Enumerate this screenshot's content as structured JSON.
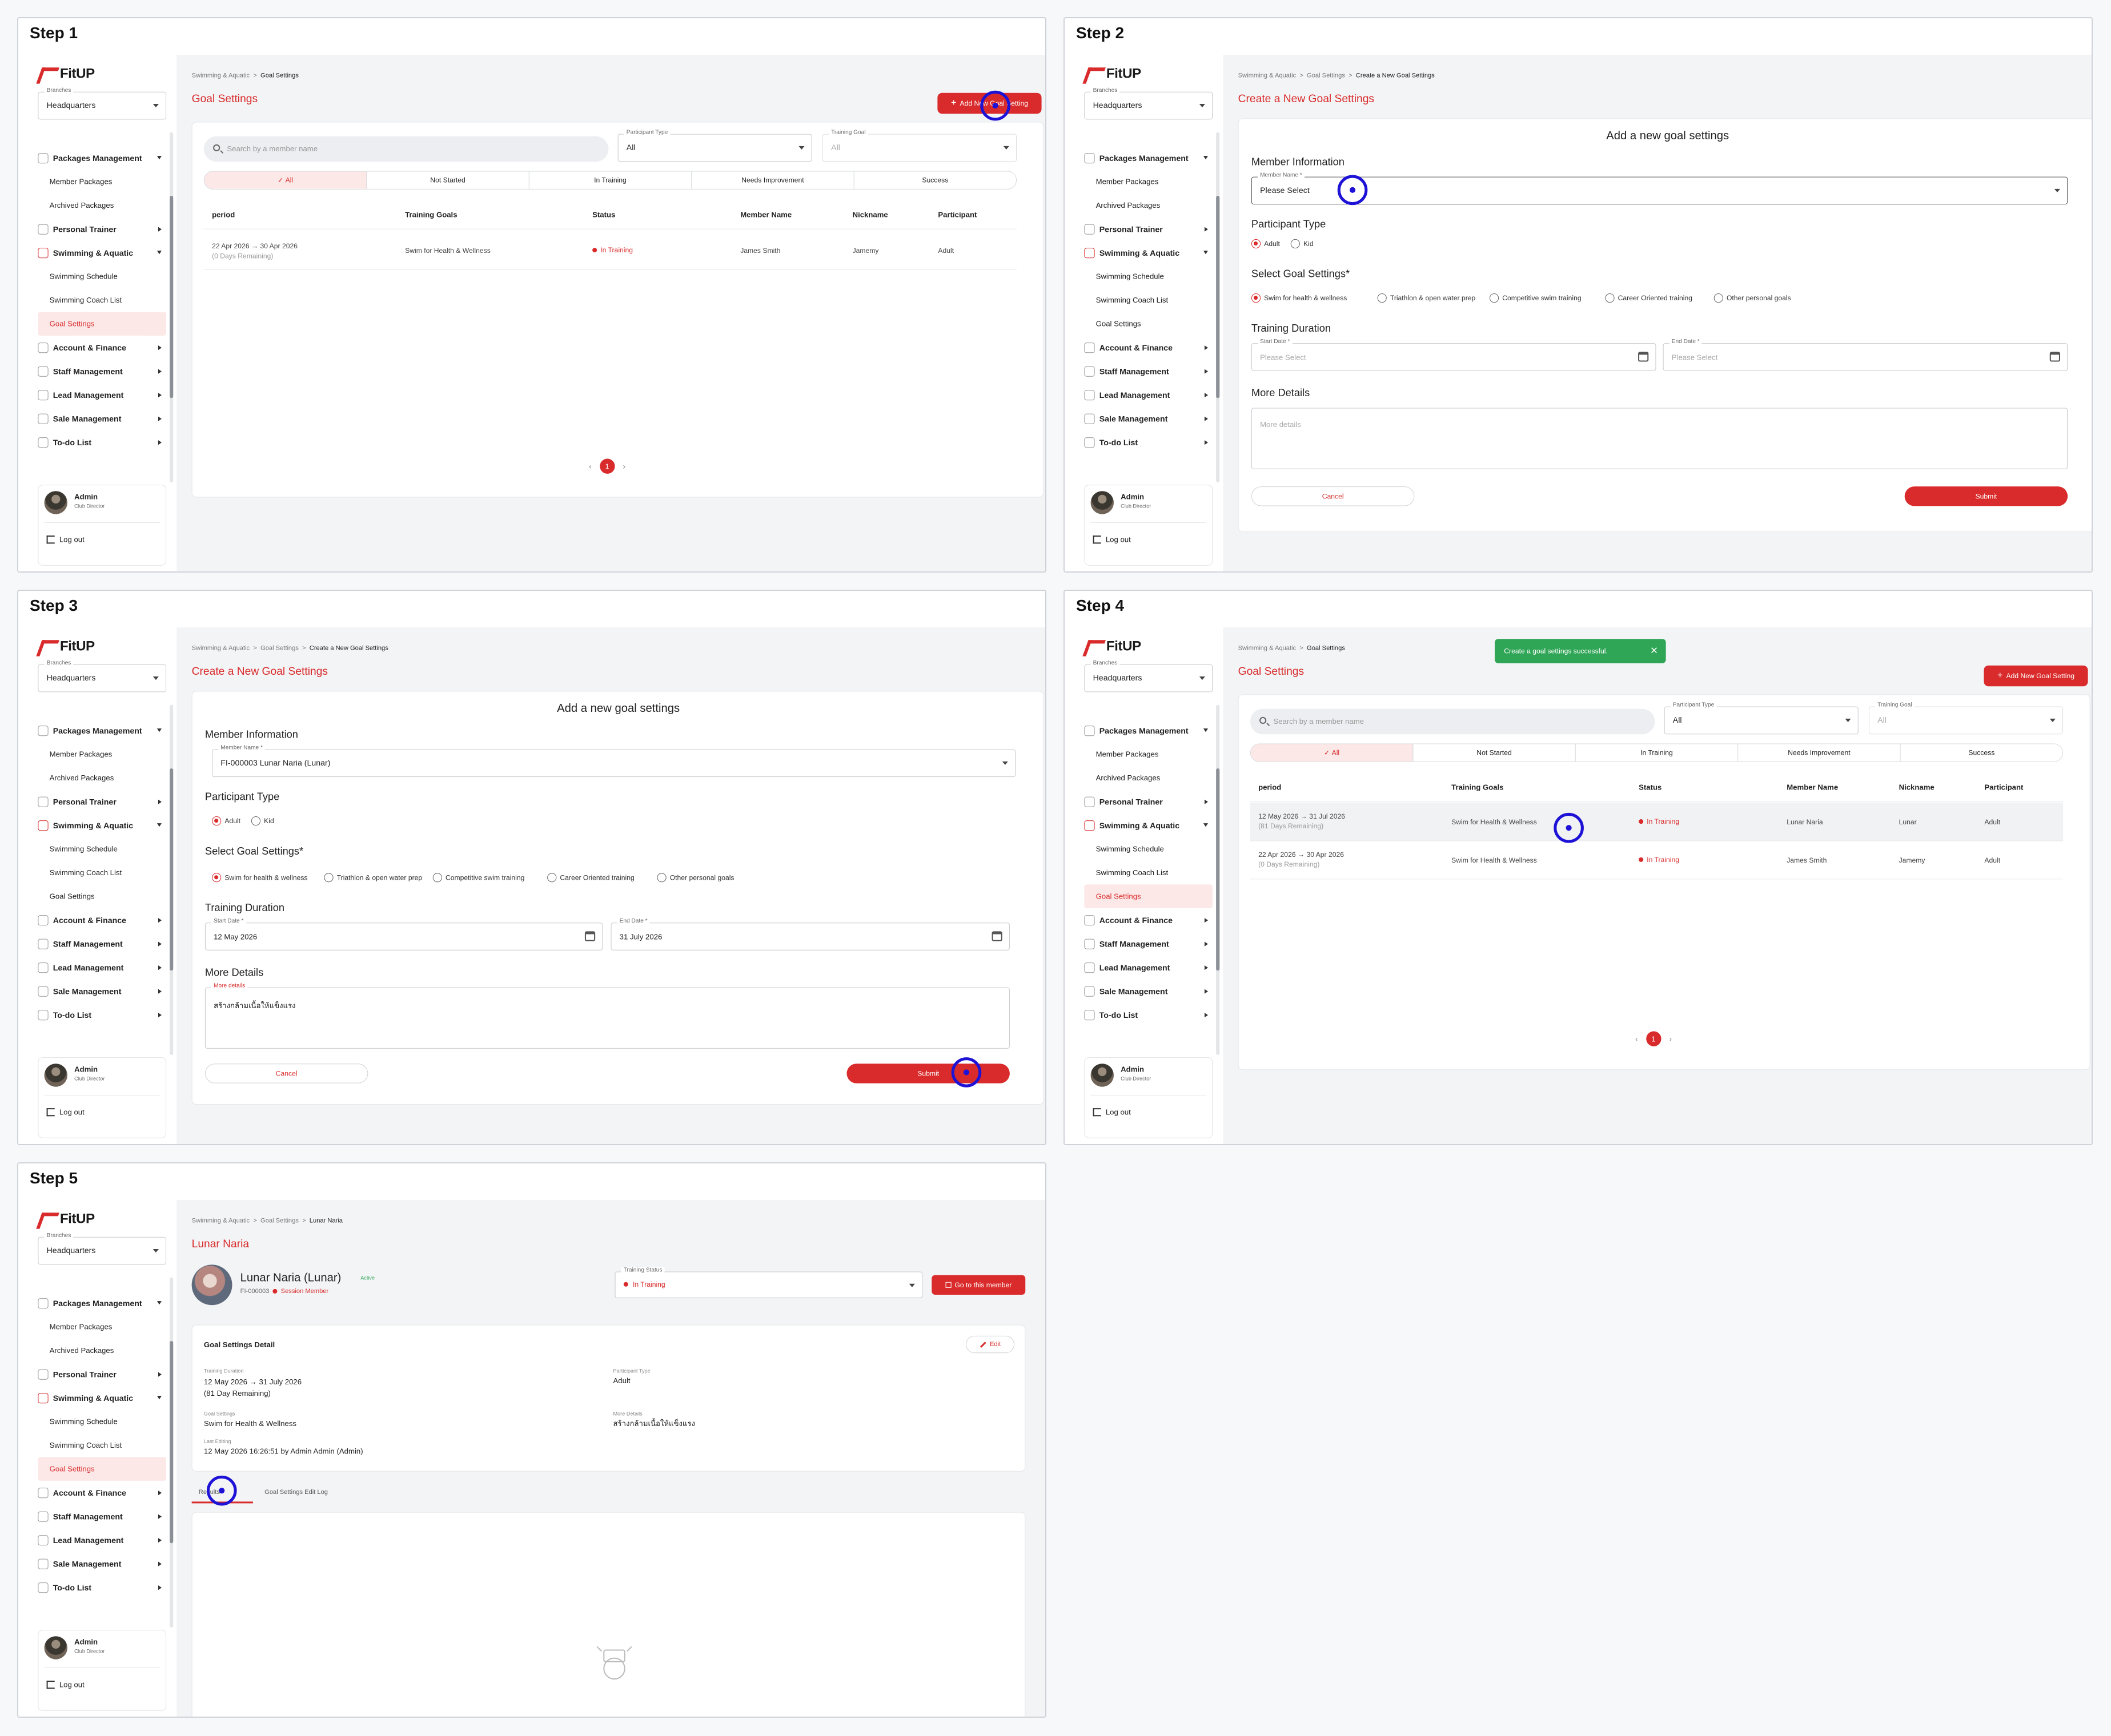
{
  "common": {
    "logo": "FitUP",
    "branches_label": "Branches",
    "branch_value": "Headquarters",
    "menu": {
      "packages": "Packages Management",
      "member_packages": "Member Packages",
      "archived_packages": "Archived Packages",
      "personal_trainer": "Personal Trainer",
      "swimming": "Swimming & Aquatic",
      "swimming_schedule": "Swimming Schedule",
      "swimming_coach": "Swimming Coach List",
      "goal_settings": "Goal Settings",
      "account": "Account & Finance",
      "staff": "Staff Management",
      "lead": "Lead Management",
      "sale": "Sale Management",
      "todo": "To-do List"
    },
    "user_name": "Admin",
    "user_role": "Club Director",
    "logout": "Log out",
    "crumb_root": "Swimming & Aquatic",
    "crumb_sep": ">",
    "crumb_goal": "Goal Settings",
    "crumb_create": "Create a New Goal Settings"
  },
  "step1": {
    "title": "Step 1",
    "page_title": "Goal Settings",
    "add_button": "Add New Goal Setting",
    "search_placeholder": "Search by a member name",
    "participant_type_label": "Participant Type",
    "participant_type_value": "All",
    "training_goal_label": "Training Goal",
    "training_goal_value": "All",
    "tabs": [
      "All",
      "Not Started",
      "In Training",
      "Needs Improvement",
      "Success"
    ],
    "columns": [
      "period",
      "Training Goals",
      "Status",
      "Member Name",
      "Nickname",
      "Participant"
    ],
    "rows": [
      {
        "period": "22 Apr 2026 → 30 Apr 2026",
        "remaining": "(0 Days Remaining)",
        "goal": "Swim for Health & Wellness",
        "status": "In Training",
        "member": "James Smith",
        "nickname": "Jamemy",
        "participant": "Adult"
      }
    ],
    "page": "1"
  },
  "step2": {
    "title": "Step 2",
    "page_title": "Create a New Goal Settings",
    "form_heading": "Add a new goal settings",
    "member_info": "Member Information",
    "member_name_label": "Member Name *",
    "member_name_value": "Please Select",
    "participant_type": "Participant Type",
    "adult": "Adult",
    "kid": "Kid",
    "select_goal": "Select Goal Settings*",
    "goals": [
      "Swim for health & wellness",
      "Triathlon & open water prep",
      "Competitive swim training",
      "Career Oriented training",
      "Other personal goals"
    ],
    "training_duration": "Training Duration",
    "start_label": "Start Date *",
    "start_value": "Please Select",
    "end_label": "End Date *",
    "end_value": "Please Select",
    "more_details": "More Details",
    "more_placeholder": "More details",
    "cancel": "Cancel",
    "submit": "Submit"
  },
  "step3": {
    "title": "Step 3",
    "member_name_value": "FI-000003 Lunar Naria (Lunar)",
    "start_value": "12 May 2026",
    "end_value": "31 July 2026",
    "more_label": "More details",
    "more_value": "สร้างกล้ามเนื้อให้แข็งแรง"
  },
  "step4": {
    "title": "Step 4",
    "toast": "Create a goal settings successful.",
    "rows": [
      {
        "period": "12 May 2026 → 31 Jul 2026",
        "remaining": "(81 Days Remaining)",
        "goal": "Swim for Health & Wellness",
        "status": "In Training",
        "member": "Lunar Naria",
        "nickname": "Lunar",
        "participant": "Adult"
      },
      {
        "period": "22 Apr 2026 → 30 Apr 2026",
        "remaining": "(0 Days Remaining)",
        "goal": "Swim for Health & Wellness",
        "status": "In Training",
        "member": "James Smith",
        "nickname": "Jamemy",
        "participant": "Adult"
      }
    ]
  },
  "step5": {
    "title": "Step 5",
    "crumb_member": "Lunar Naria",
    "page_title": "Lunar Naria",
    "member_full": "Lunar Naria (Lunar)",
    "active": "Active",
    "member_id": "FI-000003",
    "member_type": "Session Member",
    "training_status_label": "Training Status",
    "training_status_value": "In Training",
    "go_member": "Go to this member",
    "detail_title": "Goal Settings Detail",
    "edit": "Edit",
    "duration_label": "Training Duration",
    "duration_value": "12 May 2026 → 31 July 2026",
    "duration_remaining": "(81 Day Remaining)",
    "participant_label": "Participant Type",
    "participant_value": "Adult",
    "goal_label": "Goal Settings",
    "goal_value": "Swim for Health & Wellness",
    "more_label": "More Details",
    "more_value": "สร้างกล้ามเนื้อให้แข็งแรง",
    "last_label": "Last Editing",
    "last_value": "12 May 2026 16:26:51  by Admin Admin (Admin)",
    "tab_results": "Results",
    "tab_log": "Goal Settings Edit Log"
  }
}
